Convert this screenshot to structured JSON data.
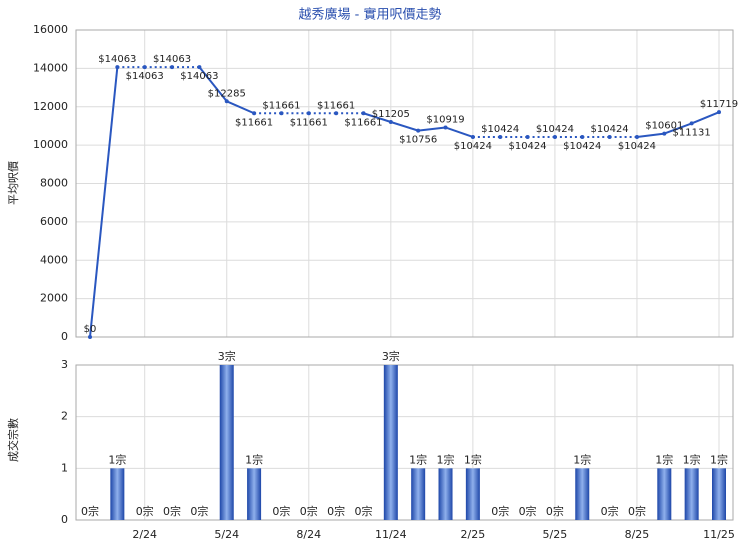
{
  "chart_data": [
    {
      "type": "line",
      "title": "越秀廣場 - 實用呎價走勢",
      "y_label": "平均呎價",
      "color": "#2a57c0",
      "values": [
        0,
        14063,
        14063,
        14063,
        14063,
        12285,
        11661,
        11661,
        11661,
        11661,
        11661,
        11205,
        10756,
        10919,
        10424,
        10424,
        10424,
        10424,
        10424,
        10424,
        10424,
        10601,
        11131,
        11719
      ],
      "value_labels": [
        "$0",
        "$14063",
        "$14063",
        "$14063",
        "$14063",
        "$12285",
        "$11661",
        "$11661",
        "$11661",
        "$11661",
        "$11661",
        "$11205",
        "$10756",
        "$10919",
        "$10424",
        "$10424",
        "$10424",
        "$10424",
        "$10424",
        "$10424",
        "$10424",
        "$10601",
        "$11131",
        "$11719"
      ],
      "ylim": [
        0,
        16000
      ],
      "yticks": [
        0,
        2000,
        4000,
        6000,
        8000,
        10000,
        12000,
        14000,
        16000
      ],
      "grid": true
    },
    {
      "type": "bar",
      "y_label": "成交宗數",
      "color": "#2a57c0",
      "categories": [
        null,
        null,
        "2/24",
        null,
        null,
        "5/24",
        null,
        null,
        "8/24",
        null,
        null,
        "11/24",
        null,
        null,
        "2/25",
        null,
        null,
        "5/25",
        null,
        null,
        "8/25",
        null,
        null,
        "11/25"
      ],
      "values": [
        0,
        1,
        0,
        0,
        0,
        3,
        1,
        0,
        0,
        0,
        0,
        3,
        1,
        1,
        1,
        0,
        0,
        0,
        1,
        0,
        0,
        1,
        1,
        1
      ],
      "value_labels": [
        "0宗",
        "1宗",
        "0宗",
        "0宗",
        "0宗",
        "3宗",
        "1宗",
        "0宗",
        "0宗",
        "0宗",
        "0宗",
        "3宗",
        "1宗",
        "1宗",
        "1宗",
        "0宗",
        "0宗",
        "0宗",
        "1宗",
        "0宗",
        "0宗",
        "1宗",
        "1宗",
        "1宗"
      ],
      "ylim": [
        0,
        3
      ],
      "yticks": [
        0,
        1,
        2,
        3
      ],
      "grid": true
    }
  ]
}
